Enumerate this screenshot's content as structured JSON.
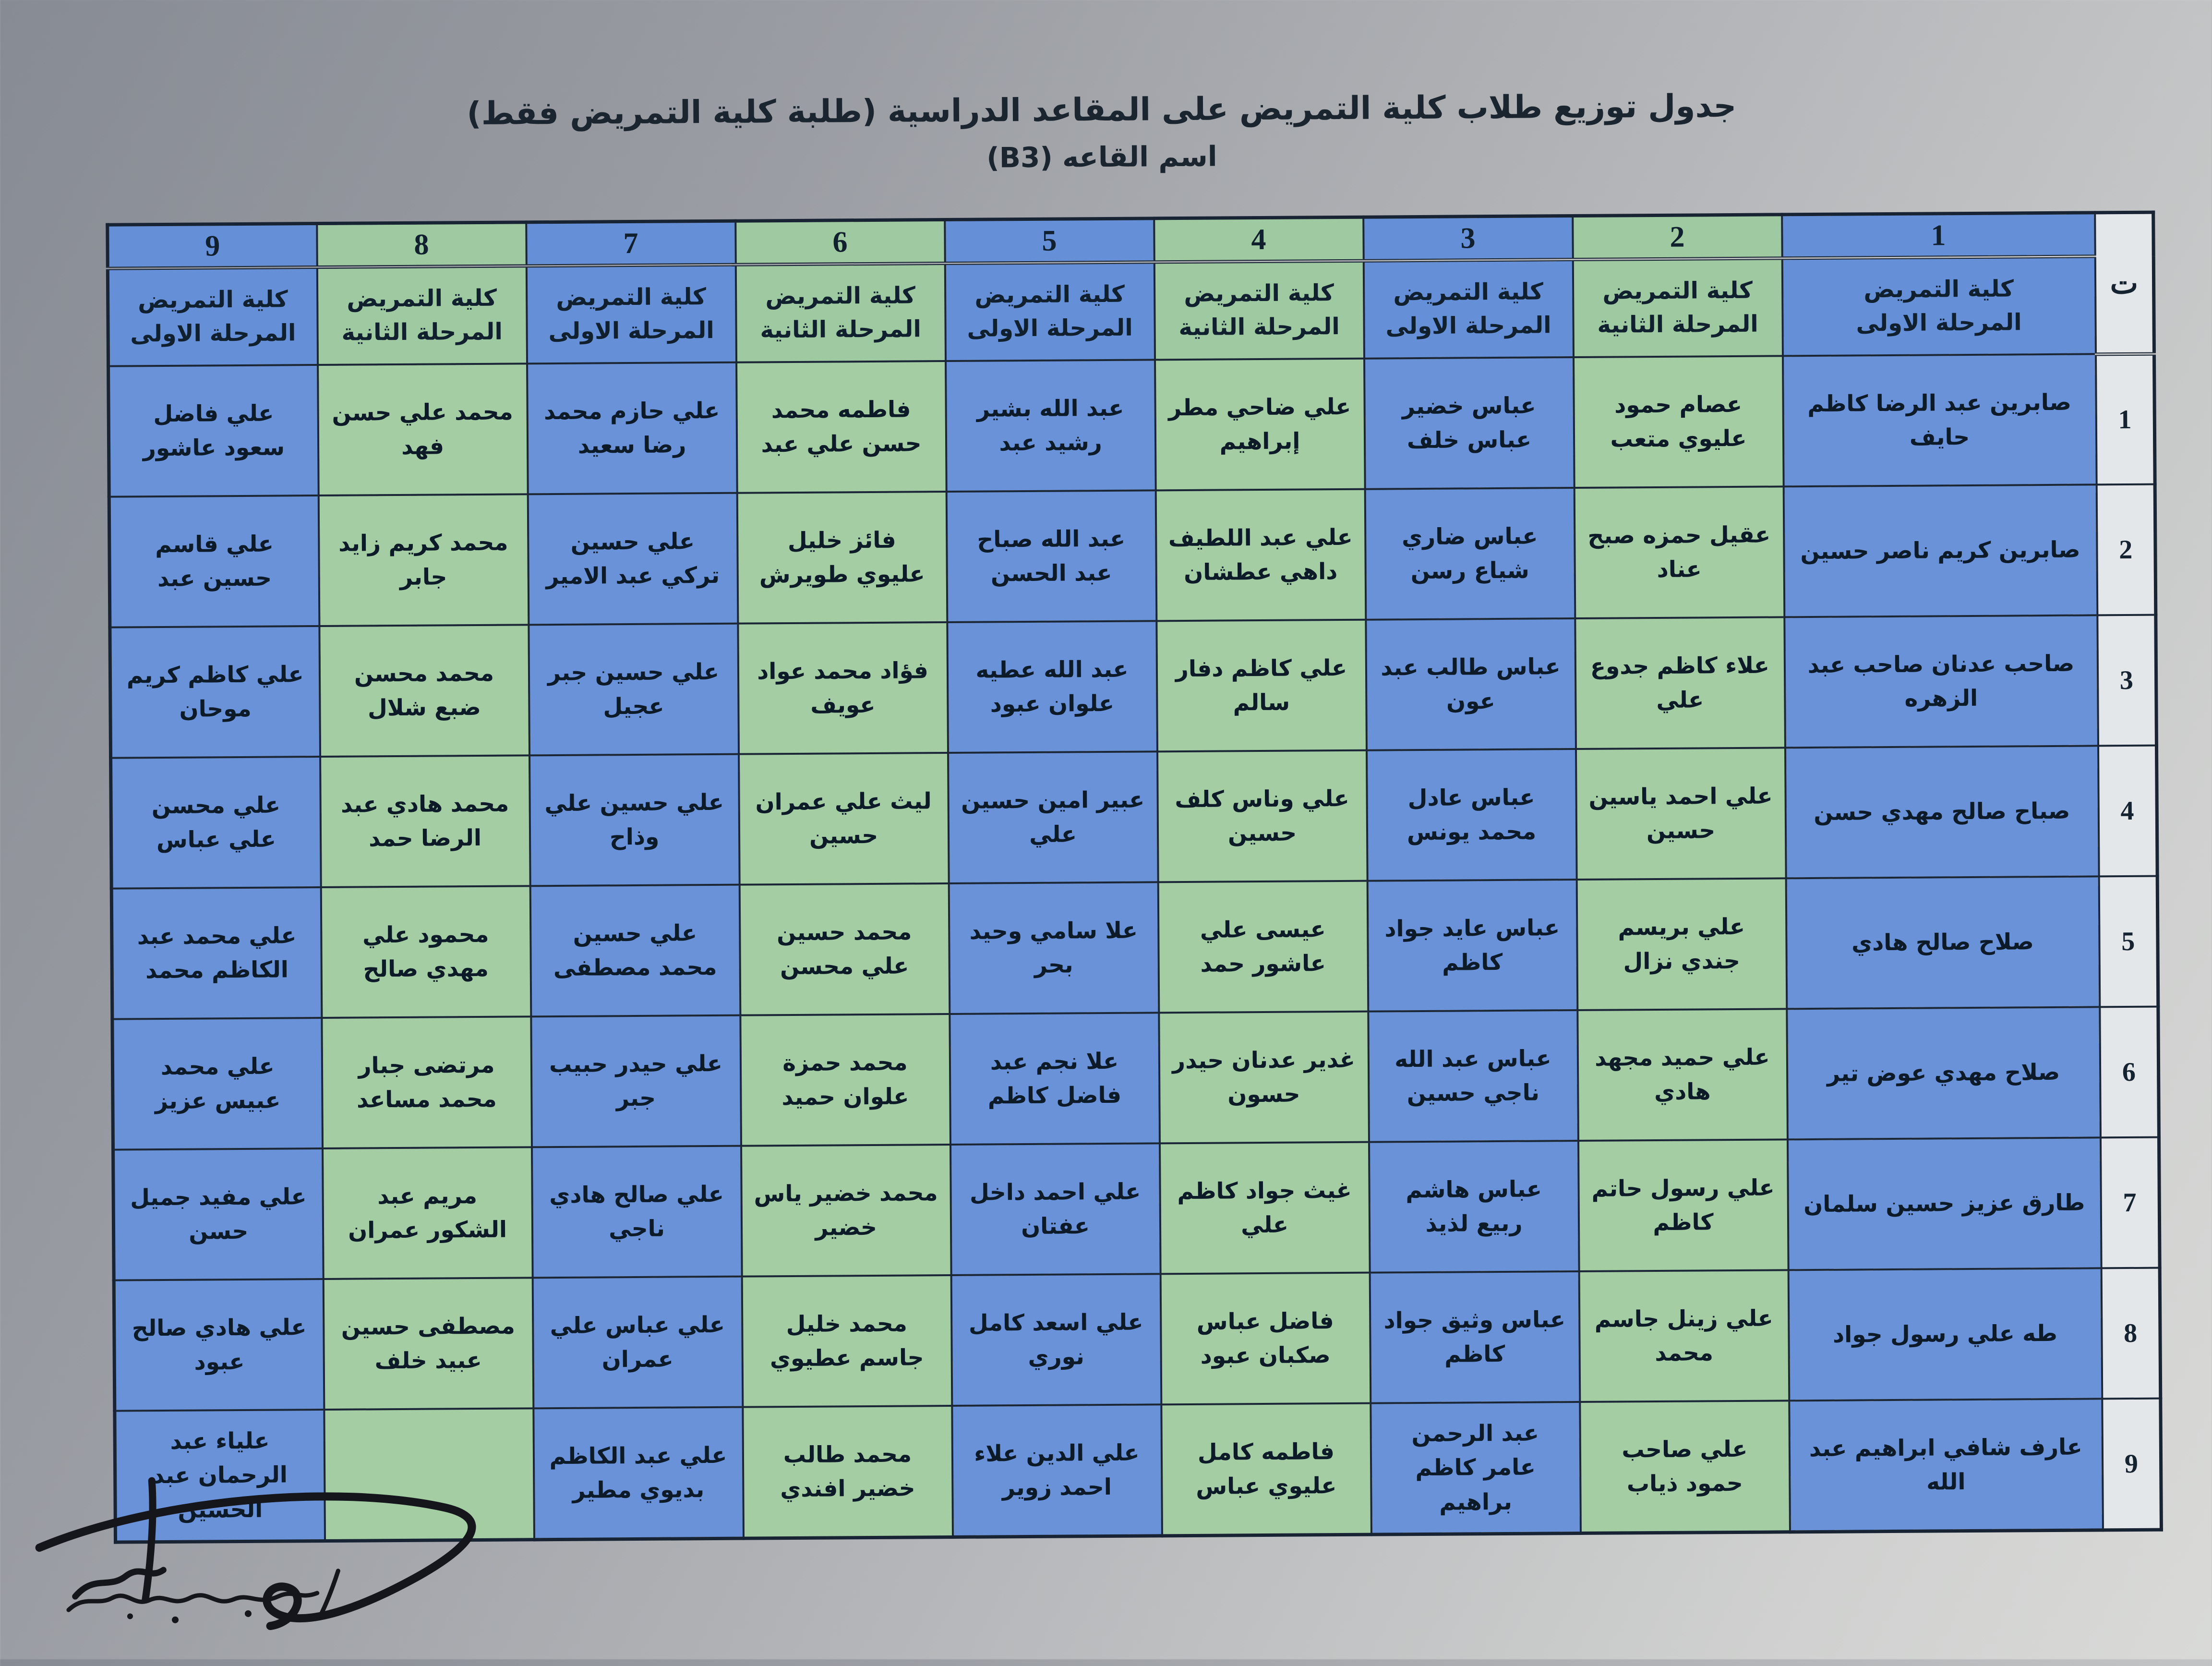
{
  "title": {
    "line1": "جدول توزيع طلاب كلية التمريض على المقاعد الدراسية  (طلبة كلية التمريض فقط)",
    "line2": "اسم القاعه (B3)"
  },
  "table": {
    "index_header": "ت",
    "row_numbers": [
      "1",
      "2",
      "3",
      "4",
      "5",
      "6",
      "7",
      "8",
      "9"
    ],
    "columns": [
      {
        "number": "1",
        "college": "كلية التمريض",
        "stage": "المرحلة الاولى",
        "color": "blue",
        "students": [
          "صابرين عبد الرضا كاظم حايف",
          "صابرين كريم ناصر حسين",
          "صاحب عدنان صاحب عبد الزهره",
          "صباح صالح مهدي حسن",
          "صلاح صالح هادي",
          "صلاح مهدي عوض تير",
          "طارق عزيز حسين سلمان",
          "طه علي رسول جواد",
          "عارف شافي ابراهيم عبد الله"
        ]
      },
      {
        "number": "2",
        "college": "كلية التمريض",
        "stage": "المرحلة الثانية",
        "color": "green",
        "students": [
          "عصام حمود عليوي متعب",
          "عقيل حمزه صبح عناد",
          "علاء كاظم جدوع علي",
          "علي احمد ياسين حسين",
          "علي بريسم جندي نزال",
          "علي حميد مجهد هادي",
          "علي رسول حاتم كاظم",
          "علي زينل جاسم محمد",
          "علي صاحب حمود ذياب"
        ]
      },
      {
        "number": "3",
        "college": "كلية التمريض",
        "stage": "المرحلة الاولى",
        "color": "blue",
        "students": [
          "عباس خضير عباس خلف",
          "عباس ضاري شياع رسن",
          "عباس طالب عبد عون",
          "عباس عادل محمد يونس",
          "عباس عايد جواد كاظم",
          "عباس عبد الله ناجي حسين",
          "عباس هاشم ربيع لذيذ",
          "عباس وثيق جواد كاظم",
          "عبد الرحمن عامر كاظم براهيم"
        ]
      },
      {
        "number": "4",
        "college": "كلية التمريض",
        "stage": "المرحلة الثانية",
        "color": "green",
        "students": [
          "علي ضاحي مطر إبراهيم",
          "علي عبد اللطيف داهي عطشان",
          "علي كاظم دفار سالم",
          "علي وناس كلف حسين",
          "عيسى علي عاشور حمد",
          "غدير عدنان حيدر حسون",
          "غيث جواد كاظم علي",
          "فاضل عباس صكبان عبود",
          "فاطمه كامل عليوي عباس"
        ]
      },
      {
        "number": "5",
        "college": "كلية التمريض",
        "stage": "المرحلة الاولى",
        "color": "blue",
        "students": [
          "عبد الله بشير رشيد عبد",
          "عبد الله صباح عبد الحسن",
          "عبد الله عطيه علوان عبود",
          "عبير امين حسين علي",
          "علا سامي وحيد بحر",
          "علا نجم عبد فاضل كاظم",
          "علي احمد داخل عفتان",
          "علي اسعد كامل نوري",
          "علي الدين علاء احمد زوير"
        ]
      },
      {
        "number": "6",
        "college": "كلية التمريض",
        "stage": "المرحلة الثانية",
        "color": "green",
        "students": [
          "فاطمه محمد حسن علي عبد",
          "فائز خليل عليوي طويرش",
          "فؤاد محمد عواد عويف",
          "ليث علي عمران حسين",
          "محمد حسين علي محسن",
          "محمد حمزة علوان حميد",
          "محمد خضير ياس خضير",
          "محمد خليل جاسم عطيوي",
          "محمد طالب خضير افندي"
        ]
      },
      {
        "number": "7",
        "college": "كلية التمريض",
        "stage": "المرحلة الاولى",
        "color": "blue",
        "students": [
          "علي حازم محمد رضا سعيد",
          "علي حسين تركي عبد الامير",
          "علي حسين جبر عجيل",
          "علي حسين علي وذاح",
          "علي حسين محمد مصطفى",
          "علي حيدر حبيب جبر",
          "علي صالح هادي ناجي",
          "علي عباس علي عمران",
          "علي عبد الكاظم بديوي مطير"
        ]
      },
      {
        "number": "8",
        "college": "كلية التمريض",
        "stage": "المرحلة الثانية",
        "color": "green",
        "students": [
          "محمد علي حسن فهد",
          "محمد كريم زايد جابر",
          "محمد محسن ضبع شلال",
          "محمد هادي عبد الرضا حمد",
          "محمود علي مهدي صالح",
          "مرتضى جبار محمد مساعد",
          "مريم عبد الشكور عمران",
          "مصطفى حسين عبيد خلف",
          ""
        ]
      },
      {
        "number": "9",
        "college": "كلية التمريض",
        "stage": "المرحلة الاولى",
        "color": "blue",
        "students": [
          "علي فاضل سعود عاشور",
          "علي قاسم حسين عبد",
          "علي كاظم كريم موحان",
          "علي محسن علي عباس",
          "علي محمد عبد الكاظم محمد",
          "علي محمد عبيس عزيز",
          "علي مفيد جميل حسن",
          "علي هادي صالح عبود",
          "علياء عبد الرحمان عبد الحسين"
        ]
      }
    ]
  },
  "colors": {
    "column_blue": "#6a92d8",
    "column_green": "#a4cda4",
    "index_bg": "#e4e7ea",
    "border": "#1b2736",
    "ink": "#0d1b29",
    "paper_dark": "#878b93",
    "paper_light": "#d9dad8"
  }
}
